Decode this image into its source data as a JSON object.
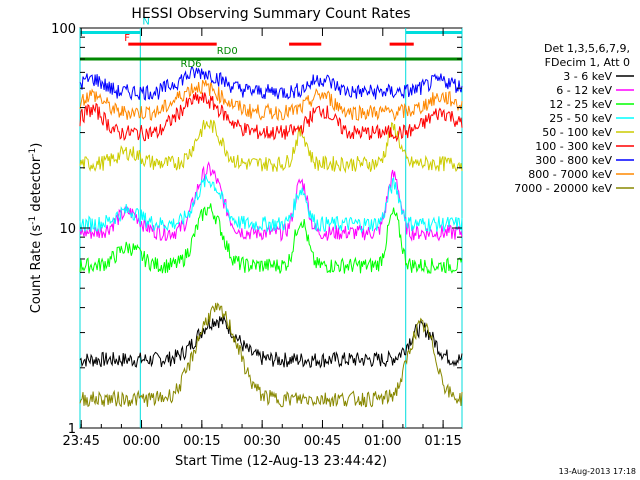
{
  "chart_data": {
    "type": "line",
    "title": "HESSI Observing Summary Count Rates",
    "xlabel": "Start Time (12-Aug-13 23:44:42)",
    "ylabel_main": "Count Rate (s",
    "ylabel_sup1": "-1",
    "ylabel_mid": " detector",
    "ylabel_sup2": "-1",
    "ylabel_end": ")",
    "yscale": "log",
    "ylim": [
      1,
      100
    ],
    "xlim_minutes": [
      0,
      95
    ],
    "x_tick_labels": [
      "23:45",
      "00:00",
      "00:15",
      "00:30",
      "00:45",
      "01:00",
      "01:15"
    ],
    "x_tick_minutes": [
      0.3,
      15.3,
      30.3,
      45.3,
      60.3,
      75.3,
      90.3
    ],
    "y_tick_labels": [
      "1",
      "10",
      "100"
    ],
    "y_tick_values": [
      1,
      10,
      100
    ],
    "legend_header": [
      "Det 1,3,5,6,7,9,",
      "FDecim 1, Att 0"
    ],
    "series": [
      {
        "name": "3 - 6 keV",
        "color": "#000000",
        "shape": "lo",
        "base": 2.2,
        "peak": 3.8
      },
      {
        "name": "6 - 12 keV",
        "color": "#ff00ff",
        "shape": "mid",
        "base": 9.5,
        "peak": 22
      },
      {
        "name": "12 - 25 keV",
        "color": "#00ff00",
        "shape": "mid",
        "base": 6.5,
        "peak": 14
      },
      {
        "name": "25 - 50 keV",
        "color": "#00ffff",
        "shape": "mid",
        "base": 10.5,
        "peak": 19
      },
      {
        "name": "50 - 100 keV",
        "color": "#cccc00",
        "shape": "mid",
        "base": 21,
        "peak": 36
      },
      {
        "name": "100 - 300 keV",
        "color": "#ff0000",
        "shape": "hi",
        "base": 30,
        "peak": 56
      },
      {
        "name": "300 - 800 keV",
        "color": "#0000ff",
        "shape": "hi",
        "base": 48,
        "peak": 70
      },
      {
        "name": "800 - 7000 keV",
        "color": "#ff8800",
        "shape": "hi",
        "base": 38,
        "peak": 62
      },
      {
        "name": "7000 - 20000 keV",
        "color": "#888800",
        "shape": "lo",
        "base": 1.4,
        "peak": 4.5
      }
    ],
    "flags": [
      {
        "label": "N",
        "color": "#00dddd",
        "x_start": 0,
        "x_end": 95,
        "segments": [
          [
            0,
            15
          ],
          [
            81,
            95
          ]
        ],
        "level": 95
      },
      {
        "label": "F",
        "color": "#ff0000",
        "segments": [
          [
            12,
            34
          ],
          [
            52,
            60
          ],
          [
            77,
            83
          ]
        ],
        "level": 83
      },
      {
        "label": "RD0",
        "color": "#008800",
        "segments": [
          [
            0,
            95
          ]
        ],
        "level": 70
      },
      {
        "label": "RD6",
        "color": "#008800",
        "segments": [],
        "level": 70
      }
    ],
    "vertical_markers_minutes": [
      0,
      15,
      81,
      95
    ],
    "timestamp": "13-Aug-2013 17:18"
  }
}
